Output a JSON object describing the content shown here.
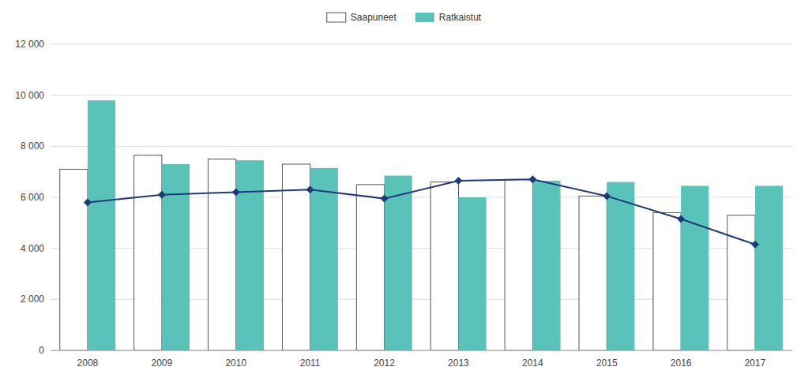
{
  "chart_data": {
    "type": "bar",
    "categories": [
      "2008",
      "2009",
      "2010",
      "2011",
      "2012",
      "2013",
      "2014",
      "2015",
      "2016",
      "2017"
    ],
    "series": [
      {
        "name": "Saapuneet",
        "color": "#ffffff",
        "values": [
          7100,
          7650,
          7500,
          7300,
          6500,
          6600,
          6700,
          6050,
          5400,
          5300
        ]
      },
      {
        "name": "Ratkaistut",
        "color": "#59c3ba",
        "values": [
          9800,
          7300,
          7450,
          7150,
          6850,
          6000,
          6650,
          6600,
          6450,
          6450
        ]
      },
      {
        "type": "line",
        "color": "#1f3a7a",
        "marker": "diamond",
        "values": [
          5800,
          6100,
          6200,
          6300,
          5950,
          6650,
          6700,
          6050,
          5150,
          4150
        ]
      }
    ],
    "ylim": [
      0,
      12000
    ],
    "yticks": [
      0,
      {
        "value": 2000,
        "label": "2 000"
      },
      {
        "value": 4000,
        "label": "4 000"
      },
      {
        "value": 6000,
        "label": "6 000"
      },
      {
        "value": 8000,
        "label": "8 000"
      },
      {
        "value": 10000,
        "label": "10 000"
      },
      {
        "value": 12000,
        "label": "12 000"
      }
    ],
    "grid": true,
    "legend": "top"
  }
}
